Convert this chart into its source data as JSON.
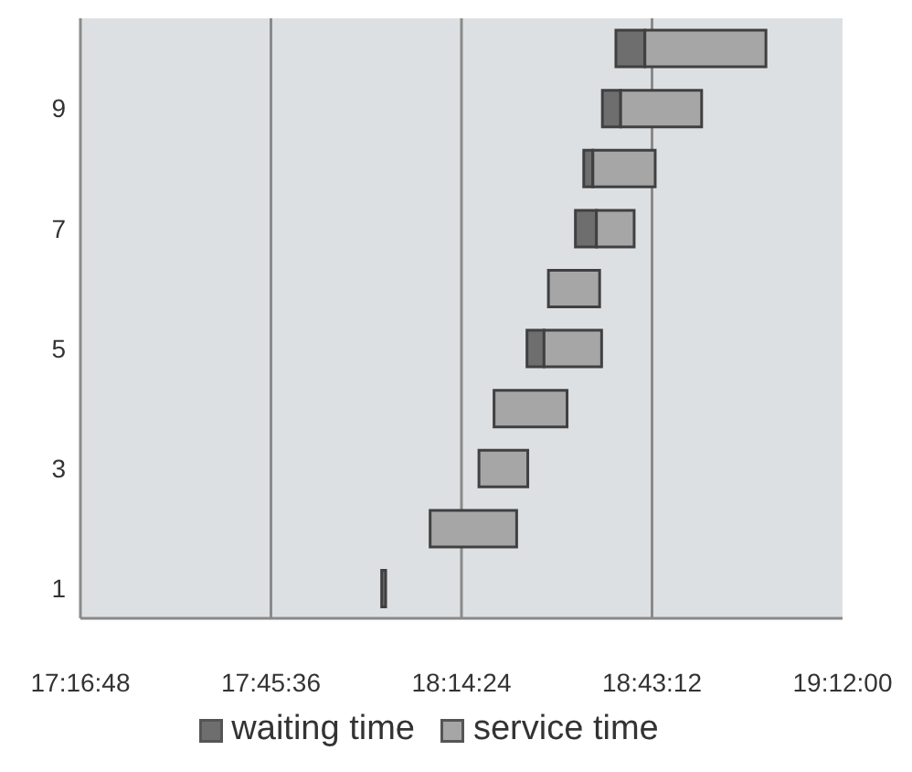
{
  "chart_data": {
    "type": "bar",
    "orientation": "horizontal",
    "categories": [
      null,
      "9",
      null,
      "7",
      null,
      "5",
      null,
      "3",
      null,
      "1"
    ],
    "series": [
      {
        "name": "waiting time",
        "color": "#6e6e6e",
        "base": [
          18.629,
          18.595,
          18.548,
          18.527,
          null,
          18.405,
          null,
          null,
          null,
          18.039
        ],
        "values": [
          0.073,
          0.046,
          0.023,
          0.053,
          null,
          0.043,
          null,
          null,
          null,
          0.01
        ]
      },
      {
        "name": "service time",
        "color": "#a6a6a6",
        "base": [
          18.702,
          18.641,
          18.571,
          18.58,
          18.459,
          18.448,
          18.322,
          18.284,
          18.161,
          null
        ],
        "values": [
          0.305,
          0.204,
          0.157,
          0.095,
          0.129,
          0.145,
          0.184,
          0.123,
          0.218,
          null
        ]
      }
    ],
    "xlim": [
      17.28,
      19.2
    ],
    "xticks": [
      {
        "value": 17.28,
        "label": "17:16:48"
      },
      {
        "value": 17.76,
        "label": "17:45:36"
      },
      {
        "value": 18.24,
        "label": "18:14:24"
      },
      {
        "value": 18.72,
        "label": "18:43:12"
      },
      {
        "value": 19.2,
        "label": "19:12:00"
      }
    ],
    "grid": "x",
    "legend": "bottom"
  }
}
